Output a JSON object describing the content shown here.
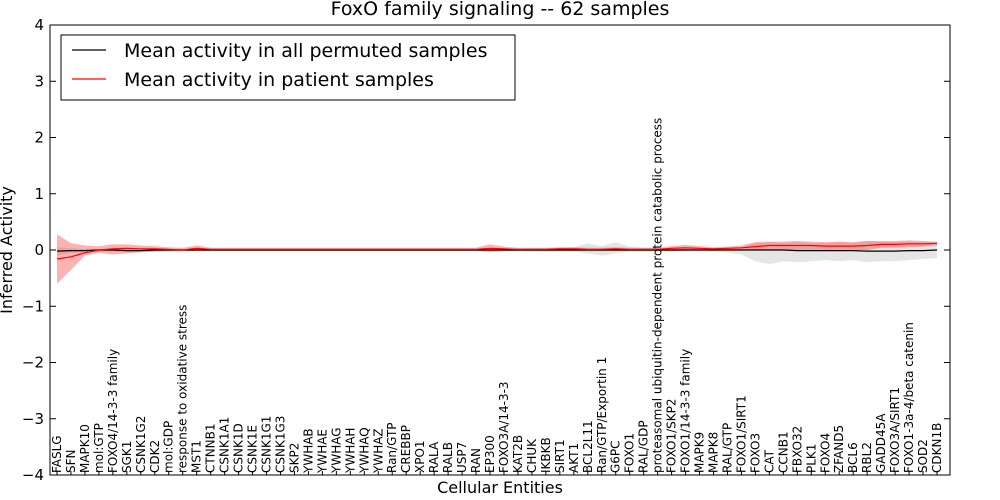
{
  "chart_data": {
    "type": "line",
    "title": "FoxO family signaling -- 62 samples",
    "xlabel": "Cellular Entities",
    "ylabel": "Inferred Activity",
    "ylim": [
      -4,
      4
    ],
    "yticks": [
      "4",
      "3",
      "2",
      "1",
      "0",
      "−1",
      "−2",
      "−3",
      "−4"
    ],
    "ytick_values": [
      4,
      3,
      2,
      1,
      0,
      -1,
      -2,
      -3,
      -4
    ],
    "legend_position": "top-left",
    "categories": [
      "FASLG",
      "SFN",
      "MAPK10",
      "mol:GTP",
      "FOXO4/14-3-3 family",
      "SGK1",
      "CSNK1G2",
      "CDK2",
      "mol:GDP",
      "response to oxidative stress",
      "MST1",
      "CTNNB1",
      "CSNK1A1",
      "CSNK1D",
      "CSNK1E",
      "CSNK1G1",
      "CSNK1G3",
      "SKP2",
      "YWHAB",
      "YWHAE",
      "YWHAG",
      "YWHAH",
      "YWHAQ",
      "YWHAZ",
      "Ran/GTP",
      "CREBBP",
      "XPO1",
      "RALA",
      "RALB",
      "USP7",
      "RAN",
      "EP300",
      "FOXO3A/14-3-3",
      "KAT2B",
      "CHUK",
      "IKBKB",
      "SIRT1",
      "AKT1",
      "BCL2L11",
      "Ran/GTP/Exportin 1",
      "G6PC",
      "FOXO1",
      "RAL/GDP",
      "proteasomal ubiquitin-dependent protein catabolic process",
      "FOXO1/SKP2",
      "FOXO1/14-3-3 family",
      "MAPK9",
      "MAPK8",
      "RAL/GTP",
      "FOXO1/SIRT1",
      "FOXO3",
      "CAT",
      "CCNB1",
      "FBXO32",
      "PLK1",
      "FOXO4",
      "ZFAND5",
      "BCL6",
      "RBL2",
      "GADD45A",
      "FOXO3A/SIRT1",
      "FOXO1-3a-4/beta catenin",
      "SOD2",
      "CDKN1B"
    ],
    "series": [
      {
        "name": "Mean activity in all permuted samples",
        "color": "#000000",
        "values": [
          -0.02,
          -0.01,
          -0.01,
          0,
          0,
          -0.01,
          -0.01,
          0,
          0,
          0,
          0,
          0,
          0,
          0,
          0,
          0,
          0,
          0,
          0,
          0,
          0,
          0,
          0,
          0,
          0,
          0,
          0,
          0,
          0,
          0,
          0,
          0,
          0,
          0,
          0,
          0,
          0,
          0,
          0,
          0,
          0,
          0,
          0,
          0,
          0,
          0,
          0,
          0,
          0,
          0,
          0,
          0,
          0,
          -0.01,
          -0.01,
          -0.01,
          -0.01,
          -0.01,
          -0.02,
          -0.02,
          -0.02,
          -0.01,
          -0.01,
          0
        ],
        "band_lower": [
          -0.1,
          -0.05,
          -0.04,
          -0.03,
          -0.03,
          -0.03,
          -0.03,
          -0.03,
          -0.03,
          -0.02,
          -0.02,
          -0.02,
          -0.02,
          -0.02,
          -0.02,
          -0.02,
          -0.02,
          -0.02,
          -0.02,
          -0.02,
          -0.02,
          -0.02,
          -0.02,
          -0.02,
          -0.02,
          -0.02,
          -0.02,
          -0.02,
          -0.02,
          -0.02,
          -0.02,
          -0.04,
          -0.03,
          -0.02,
          -0.03,
          -0.03,
          -0.03,
          -0.03,
          -0.06,
          -0.1,
          -0.06,
          -0.03,
          -0.03,
          -0.03,
          -0.03,
          -0.03,
          -0.03,
          -0.03,
          -0.05,
          -0.08,
          -0.2,
          -0.25,
          -0.2,
          -0.22,
          -0.2,
          -0.18,
          -0.2,
          -0.18,
          -0.22,
          -0.2,
          -0.2,
          -0.18,
          -0.16,
          -0.14
        ],
        "band_upper": [
          0.05,
          0.03,
          0.02,
          0.02,
          0.02,
          0.02,
          0.02,
          0.02,
          0.02,
          0.02,
          0.02,
          0.02,
          0.02,
          0.02,
          0.02,
          0.02,
          0.02,
          0.02,
          0.02,
          0.02,
          0.02,
          0.02,
          0.02,
          0.02,
          0.02,
          0.02,
          0.02,
          0.02,
          0.02,
          0.02,
          0.02,
          0.03,
          0.02,
          0.02,
          0.03,
          0.03,
          0.04,
          0.05,
          0.12,
          0.07,
          0.14,
          0.06,
          0.04,
          0.03,
          0.03,
          0.03,
          0.03,
          0.03,
          0.03,
          0.05,
          0.12,
          0.14,
          0.12,
          0.14,
          0.12,
          0.12,
          0.14,
          0.12,
          0.16,
          0.14,
          0.14,
          0.15,
          0.14,
          0.12
        ]
      },
      {
        "name": "Mean activity in patient samples",
        "color": "#ff0000",
        "values": [
          -0.16,
          -0.12,
          -0.05,
          0,
          0.02,
          0.03,
          0.02,
          0.02,
          0.01,
          0,
          0.03,
          0.01,
          0.01,
          0.01,
          0.01,
          0.01,
          0.01,
          0.01,
          0.01,
          0.01,
          0.01,
          0.01,
          0.01,
          0.01,
          0.01,
          0.01,
          0.01,
          0.01,
          0.01,
          0.01,
          0.01,
          0.03,
          0.02,
          0.01,
          0.01,
          0.01,
          0.02,
          0.02,
          0.01,
          0.01,
          0.02,
          0.01,
          0.01,
          0.01,
          0.03,
          0.04,
          0.03,
          0.02,
          0.03,
          0.04,
          0.06,
          0.08,
          0.08,
          0.08,
          0.08,
          0.07,
          0.07,
          0.07,
          0.08,
          0.1,
          0.1,
          0.11,
          0.11,
          0.12
        ],
        "band_lower": [
          -0.6,
          -0.35,
          -0.1,
          -0.05,
          -0.08,
          -0.06,
          -0.04,
          -0.03,
          -0.02,
          -0.02,
          -0.02,
          -0.02,
          -0.02,
          -0.02,
          -0.02,
          -0.02,
          -0.02,
          -0.02,
          -0.02,
          -0.02,
          -0.02,
          -0.02,
          -0.02,
          -0.02,
          -0.02,
          -0.02,
          -0.02,
          -0.02,
          -0.02,
          -0.02,
          -0.02,
          -0.03,
          -0.02,
          -0.02,
          -0.02,
          -0.02,
          -0.02,
          -0.02,
          -0.02,
          -0.02,
          -0.02,
          -0.02,
          -0.02,
          -0.02,
          -0.02,
          -0.01,
          -0.01,
          -0.01,
          -0.01,
          -0.01,
          0,
          0,
          0,
          0,
          0,
          0,
          0,
          0,
          0,
          0.04,
          0.04,
          0.05,
          0.06,
          0.08
        ],
        "band_upper": [
          0.28,
          0.12,
          0.08,
          0.07,
          0.1,
          0.1,
          0.08,
          0.07,
          0.05,
          0.04,
          0.08,
          0.04,
          0.04,
          0.04,
          0.04,
          0.04,
          0.04,
          0.04,
          0.04,
          0.04,
          0.04,
          0.04,
          0.04,
          0.04,
          0.04,
          0.04,
          0.04,
          0.04,
          0.04,
          0.04,
          0.04,
          0.1,
          0.06,
          0.04,
          0.04,
          0.04,
          0.05,
          0.05,
          0.04,
          0.04,
          0.05,
          0.04,
          0.04,
          0.04,
          0.07,
          0.09,
          0.07,
          0.05,
          0.06,
          0.08,
          0.14,
          0.15,
          0.15,
          0.16,
          0.15,
          0.14,
          0.15,
          0.14,
          0.16,
          0.16,
          0.16,
          0.17,
          0.16,
          0.15
        ]
      }
    ]
  }
}
